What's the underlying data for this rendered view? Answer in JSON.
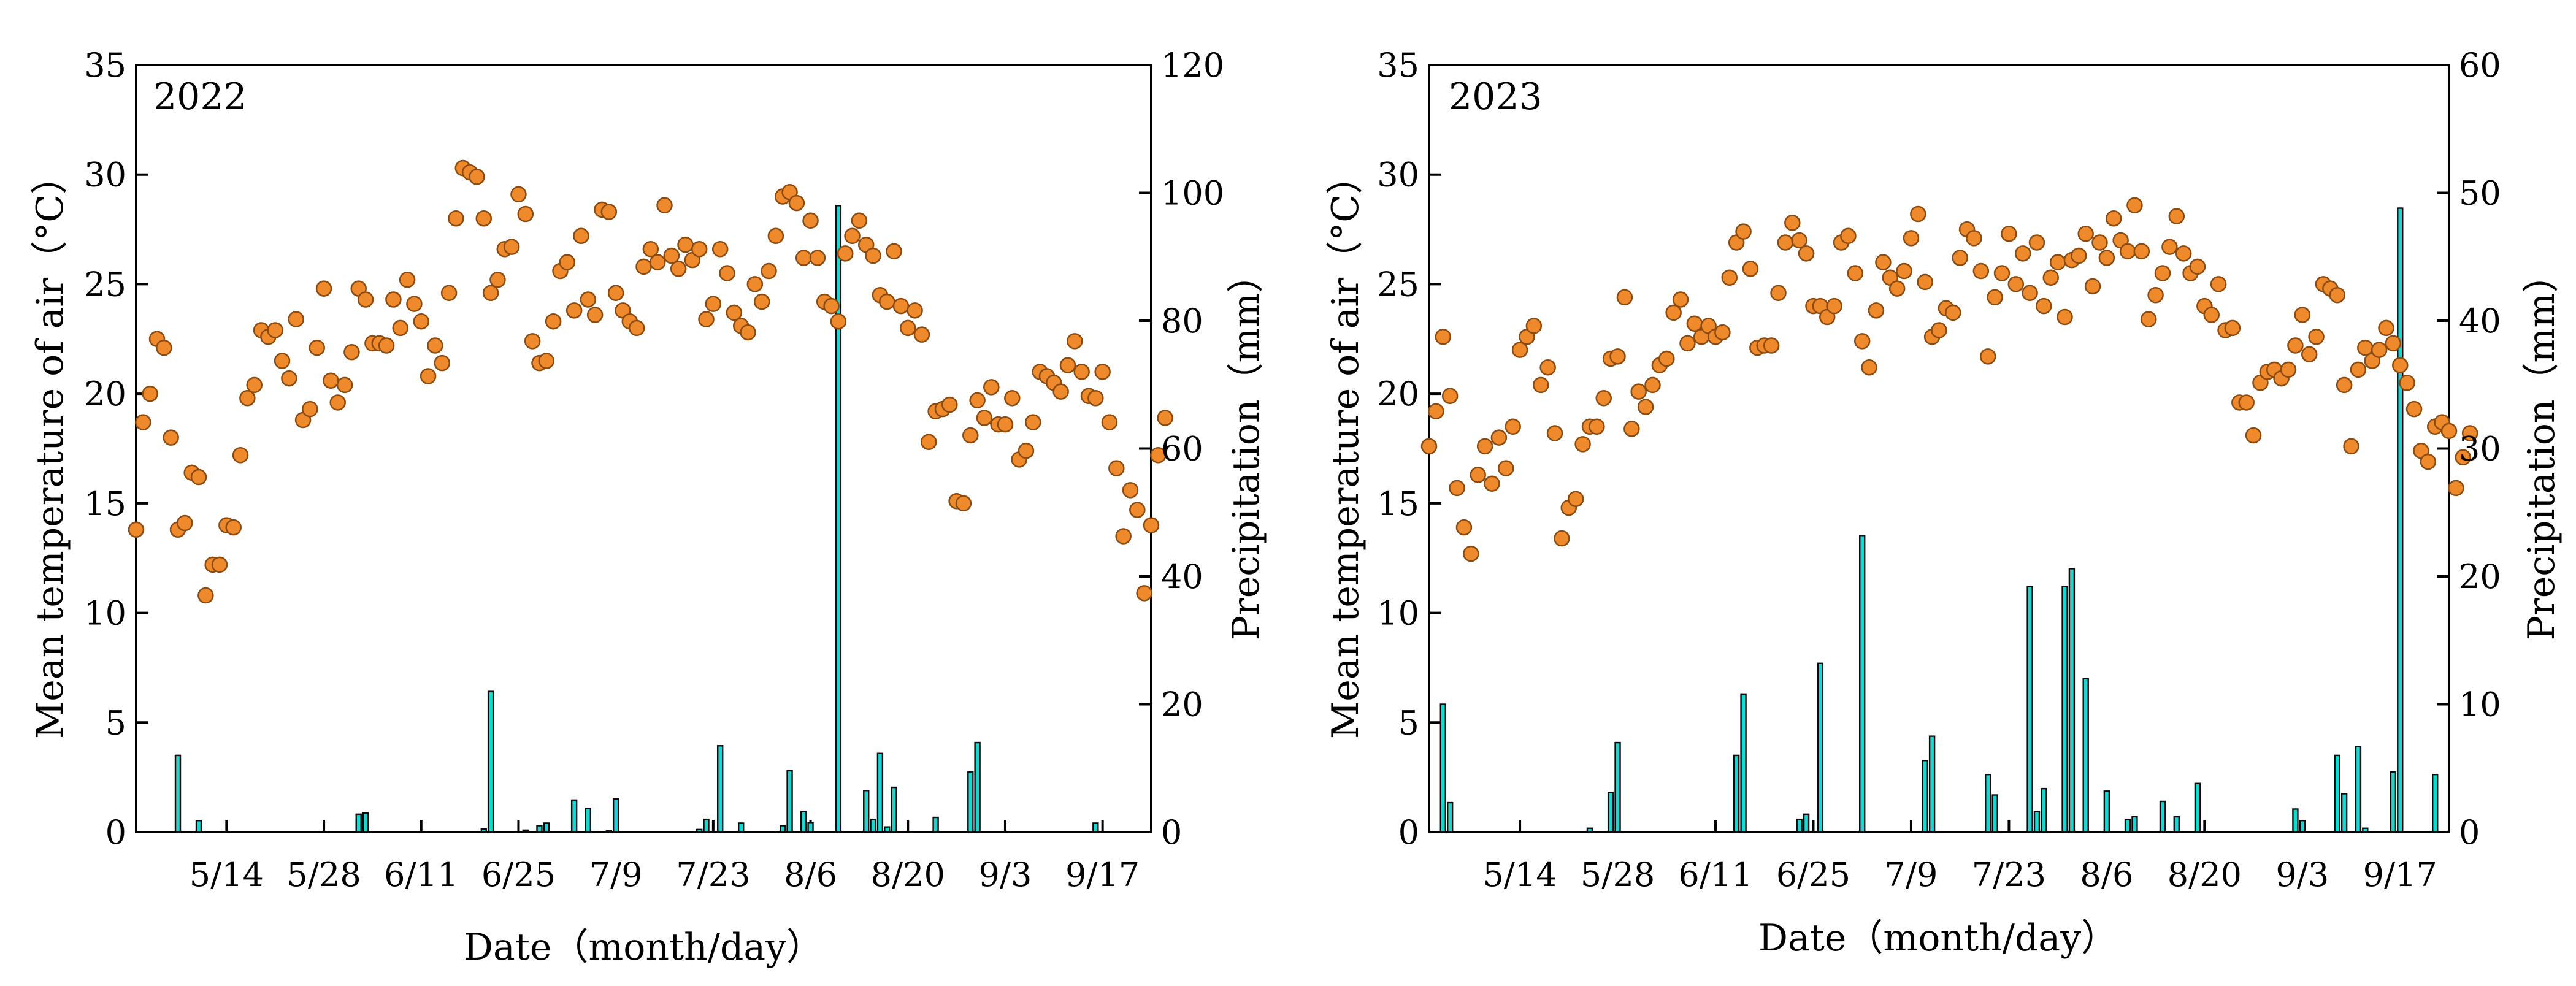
{
  "figure": {
    "colors": {
      "temperature_dot": "#ee8a2c",
      "temperature_edge": "#8a4a10",
      "precip_bar": "#19d6d1",
      "axis": "#000000"
    }
  },
  "chart_data": [
    {
      "type": "scatter+bar",
      "panel_label": "2022",
      "xlabel": "Date（month/day）",
      "ylabel": "Mean temperature of air（°C）",
      "y2label": "Precipitation（mm）",
      "ylim": [
        0,
        35
      ],
      "y2lim": [
        0,
        120
      ],
      "yticks": [
        "0",
        "5",
        "10",
        "15",
        "20",
        "25",
        "30",
        "35"
      ],
      "y2ticks": [
        "0",
        "20",
        "40",
        "60",
        "80",
        "100",
        "120"
      ],
      "yticks_values": [
        0,
        5,
        10,
        15,
        20,
        25,
        30,
        35
      ],
      "y2ticks_values": [
        0,
        20,
        40,
        60,
        80,
        100,
        120
      ],
      "x_start_day": 0,
      "x_end_day": 146,
      "xticks": [
        {
          "label": "5/14",
          "day": 13
        },
        {
          "label": "5/28",
          "day": 27
        },
        {
          "label": "6/11",
          "day": 41
        },
        {
          "label": "6/25",
          "day": 55
        },
        {
          "label": "7/9",
          "day": 69
        },
        {
          "label": "7/23",
          "day": 83
        },
        {
          "label": "8/6",
          "day": 97
        },
        {
          "label": "8/20",
          "day": 111
        },
        {
          "label": "9/3",
          "day": 125
        },
        {
          "label": "9/17",
          "day": 139
        }
      ],
      "temperature_series": {
        "name": "Mean temperature of air",
        "units": "°C",
        "values": [
          13.8,
          18.7,
          20.0,
          22.5,
          22.1,
          18.0,
          13.8,
          14.1,
          16.4,
          16.2,
          10.8,
          12.2,
          12.2,
          14.0,
          13.9,
          17.2,
          19.8,
          20.4,
          22.9,
          22.6,
          22.9,
          21.5,
          20.7,
          23.4,
          18.8,
          19.3,
          22.1,
          24.8,
          20.6,
          19.6,
          20.4,
          21.9,
          24.8,
          24.3,
          22.3,
          22.3,
          22.2,
          24.3,
          23.0,
          25.2,
          24.1,
          23.3,
          20.8,
          22.2,
          21.4,
          24.6,
          28.0,
          30.3,
          30.1,
          29.9,
          28.0,
          24.6,
          25.2,
          26.6,
          26.7,
          29.1,
          28.2,
          22.4,
          21.4,
          21.5,
          23.3,
          25.6,
          26.0,
          23.8,
          27.2,
          24.3,
          23.6,
          28.4,
          28.3,
          24.6,
          23.8,
          23.3,
          23.0,
          25.8,
          26.6,
          26.0,
          28.6,
          26.3,
          25.7,
          26.8,
          26.1,
          26.6,
          23.4,
          24.1,
          26.6,
          25.5,
          23.7,
          23.1,
          22.8,
          25.0,
          24.2,
          25.6,
          27.2,
          29.0,
          29.2,
          28.7,
          26.2,
          27.9,
          26.2,
          24.2,
          24.0,
          23.3,
          26.4,
          27.2,
          27.9,
          26.8,
          26.3,
          24.5,
          24.2,
          26.5,
          24.0,
          23.0,
          23.8,
          22.7,
          17.8,
          19.2,
          19.3,
          19.5,
          15.1,
          15.0,
          18.1,
          19.7,
          18.9,
          20.3,
          18.6,
          18.6,
          19.8,
          17.0,
          17.4,
          18.7,
          21.0,
          20.8,
          20.5,
          20.1,
          21.3,
          22.4,
          21.0,
          19.9,
          19.8,
          21.0,
          18.7,
          16.6,
          13.5,
          15.6,
          14.7,
          10.9,
          14.0,
          17.2,
          18.9
        ]
      },
      "precipitation_series": {
        "name": "Precipitation",
        "units": "mm",
        "bars": [
          [
            6,
            12.0
          ],
          [
            9,
            1.8
          ],
          [
            32,
            2.8
          ],
          [
            33,
            3.0
          ],
          [
            50,
            0.5
          ],
          [
            51,
            22.0
          ],
          [
            56,
            0.3
          ],
          [
            58,
            1.0
          ],
          [
            59,
            1.4
          ],
          [
            63,
            5.0
          ],
          [
            65,
            3.7
          ],
          [
            68,
            0.2
          ],
          [
            69,
            5.2
          ],
          [
            81,
            0.4
          ],
          [
            82,
            2.0
          ],
          [
            84,
            13.5
          ],
          [
            87,
            1.4
          ],
          [
            93,
            1.0
          ],
          [
            94,
            9.6
          ],
          [
            96,
            3.2
          ],
          [
            97,
            1.5
          ],
          [
            101,
            98.0
          ],
          [
            105,
            6.5
          ],
          [
            106,
            2.0
          ],
          [
            107,
            12.3
          ],
          [
            108,
            0.8
          ],
          [
            109,
            7.0
          ],
          [
            115,
            2.3
          ],
          [
            120,
            9.4
          ],
          [
            121,
            14.0
          ],
          [
            138,
            1.4
          ]
        ]
      }
    },
    {
      "type": "scatter+bar",
      "panel_label": "2023",
      "xlabel": "Date（month/day）",
      "ylabel": "Mean temperature of air（°C）",
      "y2label": "Precipitation（mm）",
      "ylim": [
        0,
        35
      ],
      "y2lim": [
        0,
        60
      ],
      "yticks": [
        "0",
        "5",
        "10",
        "15",
        "20",
        "25",
        "30",
        "35"
      ],
      "y2ticks": [
        "0",
        "10",
        "20",
        "30",
        "40",
        "50",
        "60"
      ],
      "yticks_values": [
        0,
        5,
        10,
        15,
        20,
        25,
        30,
        35
      ],
      "y2ticks_values": [
        0,
        10,
        20,
        30,
        40,
        50,
        60
      ],
      "x_start_day": 0,
      "x_end_day": 146,
      "xticks": [
        {
          "label": "5/14",
          "day": 13
        },
        {
          "label": "5/28",
          "day": 27
        },
        {
          "label": "6/11",
          "day": 41
        },
        {
          "label": "6/25",
          "day": 55
        },
        {
          "label": "7/9",
          "day": 69
        },
        {
          "label": "7/23",
          "day": 83
        },
        {
          "label": "8/6",
          "day": 97
        },
        {
          "label": "8/20",
          "day": 111
        },
        {
          "label": "9/3",
          "day": 125
        },
        {
          "label": "9/17",
          "day": 139
        }
      ],
      "temperature_series": {
        "name": "Mean temperature of air",
        "units": "°C",
        "values": [
          17.6,
          19.2,
          22.6,
          19.9,
          15.7,
          13.9,
          12.7,
          16.3,
          17.6,
          15.9,
          18.0,
          16.6,
          18.5,
          22.0,
          22.6,
          23.1,
          20.4,
          21.2,
          18.2,
          13.4,
          14.8,
          15.2,
          17.7,
          18.5,
          18.5,
          19.8,
          21.6,
          21.7,
          24.4,
          18.4,
          20.1,
          19.4,
          20.4,
          21.3,
          21.6,
          23.7,
          24.3,
          22.3,
          23.2,
          22.6,
          23.1,
          22.6,
          22.8,
          25.3,
          26.9,
          27.4,
          25.7,
          22.1,
          22.2,
          22.2,
          24.6,
          26.9,
          27.8,
          27.0,
          26.4,
          24.0,
          24.0,
          23.5,
          24.0,
          26.9,
          27.2,
          25.5,
          22.4,
          21.2,
          23.8,
          26.0,
          25.3,
          24.8,
          25.6,
          27.1,
          28.2,
          25.1,
          22.6,
          22.9,
          23.9,
          23.7,
          26.2,
          27.5,
          27.1,
          25.6,
          21.7,
          24.4,
          25.5,
          27.3,
          25.0,
          26.4,
          24.6,
          26.9,
          24.0,
          25.3,
          26.0,
          23.5,
          26.1,
          26.3,
          27.3,
          24.9,
          26.9,
          26.2,
          28.0,
          27.0,
          26.5,
          28.6,
          26.5,
          23.4,
          24.5,
          25.5,
          26.7,
          28.1,
          26.4,
          25.5,
          25.8,
          24.0,
          23.6,
          25.0,
          22.9,
          23.0,
          19.6,
          19.6,
          18.1,
          20.5,
          21.0,
          21.1,
          20.7,
          21.1,
          22.2,
          23.6,
          21.8,
          22.6,
          25.0,
          24.8,
          24.5,
          20.4,
          17.6,
          21.1,
          22.1,
          21.5,
          22.0,
          23.0,
          22.3,
          21.3,
          20.5,
          19.3,
          17.4,
          16.9,
          18.5,
          18.7,
          18.3,
          15.7,
          17.1,
          18.2
        ]
      },
      "precipitation_series": {
        "name": "Precipitation",
        "units": "mm",
        "bars": [
          [
            2,
            10.0
          ],
          [
            3,
            2.3
          ],
          [
            23,
            0.3
          ],
          [
            26,
            3.1
          ],
          [
            27,
            7.0
          ],
          [
            44,
            6.0
          ],
          [
            45,
            10.8
          ],
          [
            53,
            1.0
          ],
          [
            54,
            1.4
          ],
          [
            56,
            13.2
          ],
          [
            62,
            23.2
          ],
          [
            71,
            5.6
          ],
          [
            72,
            7.5
          ],
          [
            80,
            4.5
          ],
          [
            81,
            2.9
          ],
          [
            86,
            19.2
          ],
          [
            87,
            1.6
          ],
          [
            88,
            3.4
          ],
          [
            91,
            19.2
          ],
          [
            92,
            20.6
          ],
          [
            94,
            12.0
          ],
          [
            97,
            3.2
          ],
          [
            100,
            1.0
          ],
          [
            101,
            1.2
          ],
          [
            105,
            2.4
          ],
          [
            107,
            1.2
          ],
          [
            110,
            3.8
          ],
          [
            124,
            1.8
          ],
          [
            125,
            0.9
          ],
          [
            130,
            6.0
          ],
          [
            131,
            3.0
          ],
          [
            133,
            6.7
          ],
          [
            134,
            0.3
          ],
          [
            138,
            4.7
          ],
          [
            139,
            48.8
          ],
          [
            144,
            4.5
          ]
        ]
      }
    }
  ]
}
